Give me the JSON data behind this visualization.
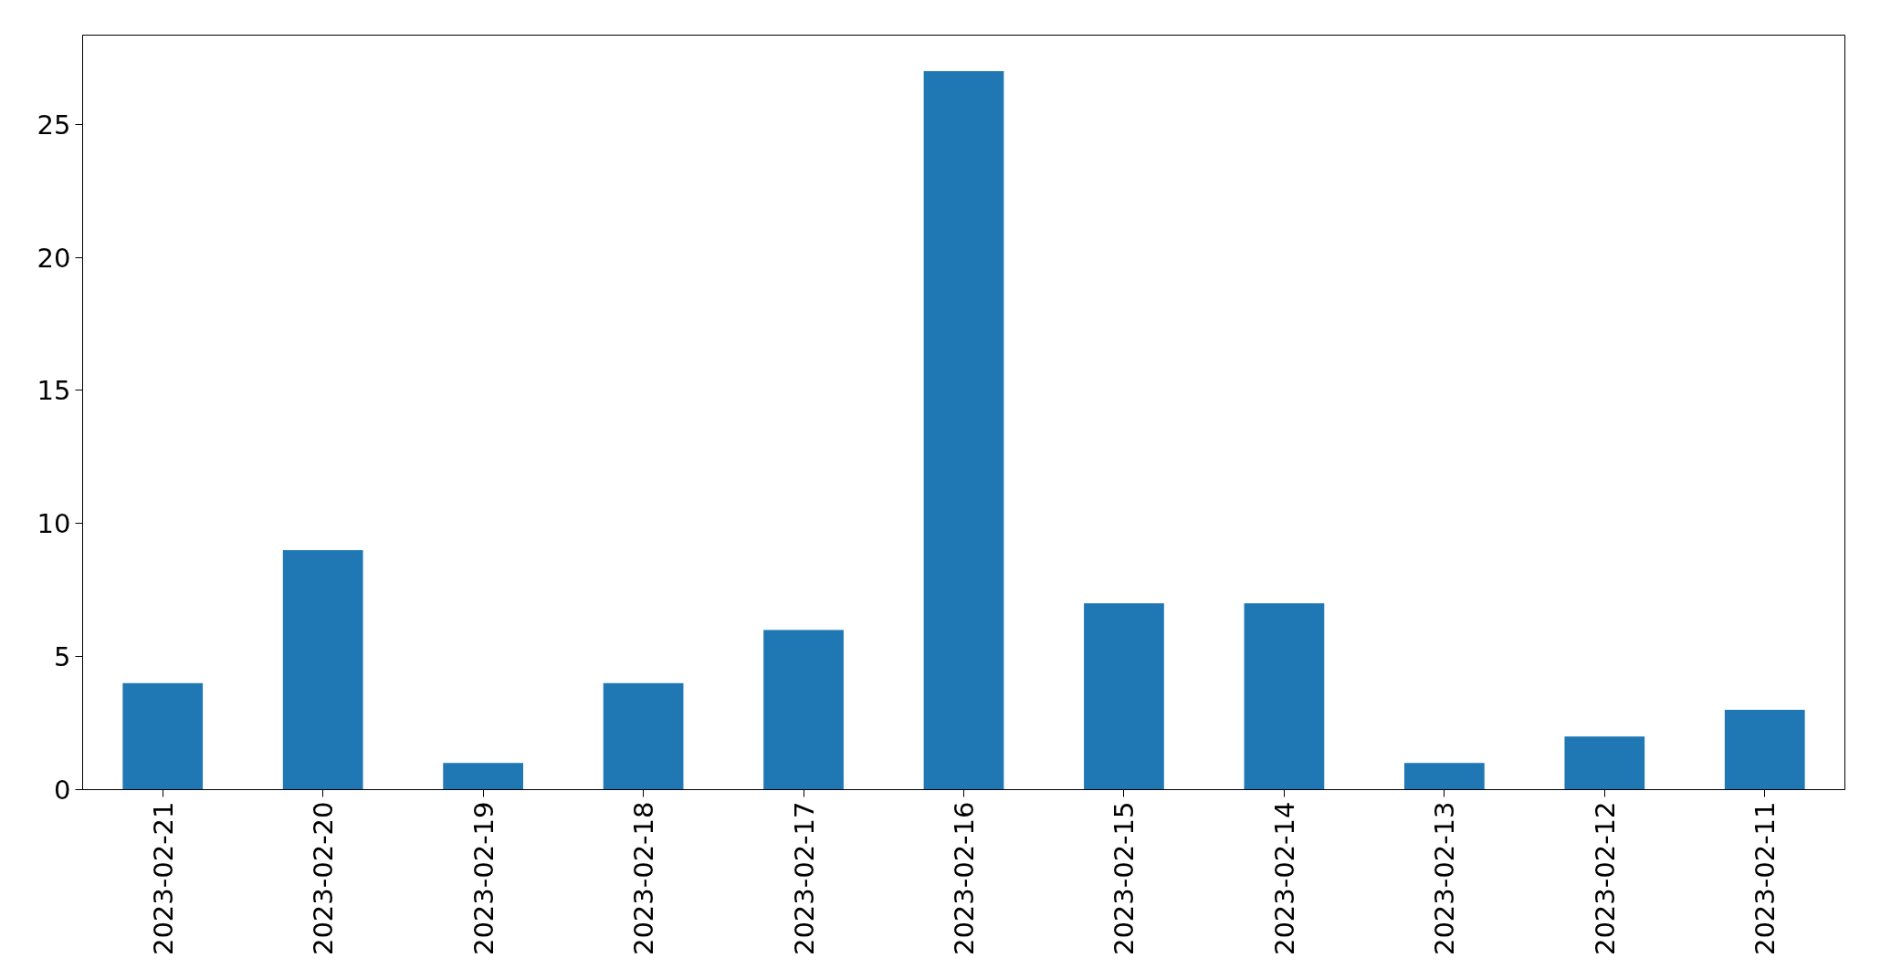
{
  "chart_data": {
    "type": "bar",
    "categories": [
      "2023-02-21",
      "2023-02-20",
      "2023-02-19",
      "2023-02-18",
      "2023-02-17",
      "2023-02-16",
      "2023-02-15",
      "2023-02-14",
      "2023-02-13",
      "2023-02-12",
      "2023-02-11"
    ],
    "values": [
      4,
      9,
      1,
      4,
      6,
      27,
      7,
      7,
      1,
      2,
      3
    ],
    "color": "#1f77b4",
    "ylim": [
      0,
      28.35
    ],
    "yticks": [
      0,
      5,
      10,
      15,
      20,
      25
    ],
    "grid": false
  }
}
